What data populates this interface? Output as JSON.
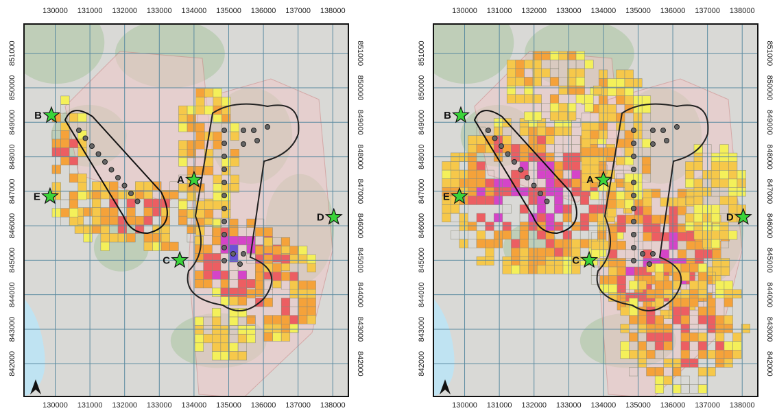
{
  "axes": {
    "xlim": [
      129100,
      138450
    ],
    "ylim": [
      841050,
      851850
    ],
    "xticks": [
      130000,
      131000,
      132000,
      133000,
      134000,
      135000,
      136000,
      137000,
      138000
    ],
    "yticks": [
      842000,
      843000,
      844000,
      845000,
      846000,
      847000,
      848000,
      849000,
      850000,
      851000
    ]
  },
  "sites": [
    {
      "label": "A",
      "x": 134000,
      "y": 847330
    },
    {
      "label": "B",
      "x": 129890,
      "y": 849200
    },
    {
      "label": "C",
      "x": 133590,
      "y": 845000
    },
    {
      "label": "D",
      "x": 138030,
      "y": 846250
    },
    {
      "label": "E",
      "x": 129850,
      "y": 846850
    }
  ]
}
